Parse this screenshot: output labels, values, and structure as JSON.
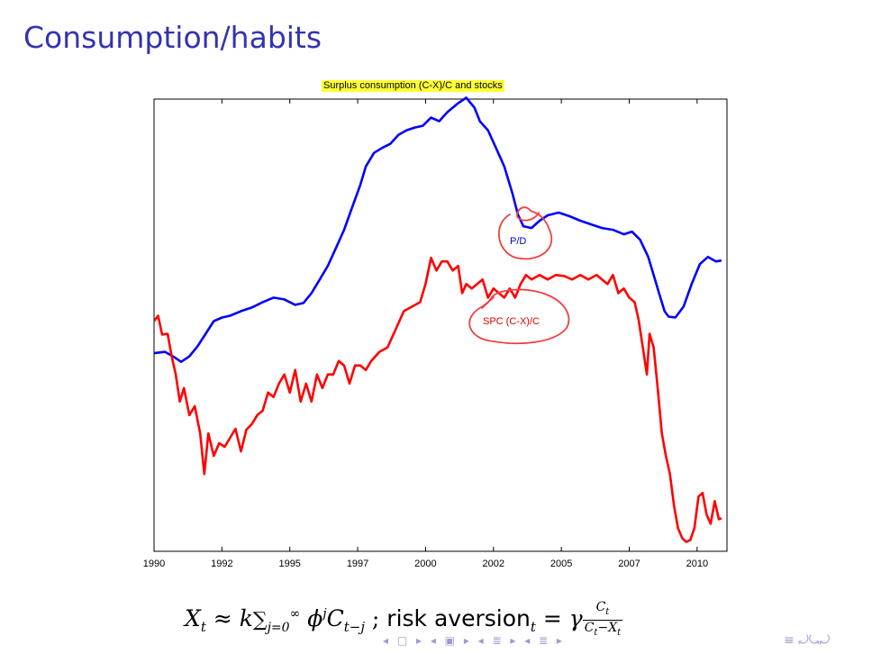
{
  "slide": {
    "title": "Consumption/habits"
  },
  "chart_data": {
    "type": "line",
    "title": "Surplus consumption (C-X)/C and stocks",
    "x_tick_labels": [
      "1990",
      "1992",
      "1995",
      "1997",
      "2000",
      "2002",
      "2005",
      "2007",
      "2010"
    ],
    "x_ticks": [
      1990,
      1992.5,
      1995,
      1997.5,
      2000,
      2002.5,
      2005,
      2007.5,
      2010
    ],
    "xlim": [
      1990,
      2011.1
    ],
    "ylim": [
      0,
      100
    ],
    "grid": false,
    "legend": "none",
    "annotations": [
      "P/D",
      "SPC (C-X)/C"
    ],
    "series": [
      {
        "name": "P/D",
        "color": "#0000ff",
        "points": [
          [
            1990,
            43.8
          ],
          [
            1990.4,
            44.1
          ],
          [
            1990.7,
            43.1
          ],
          [
            1991,
            41.9
          ],
          [
            1991.3,
            43.1
          ],
          [
            1991.6,
            45.3
          ],
          [
            1991.9,
            48.1
          ],
          [
            1992.2,
            50.9
          ],
          [
            1992.5,
            51.7
          ],
          [
            1992.8,
            52.1
          ],
          [
            1993.2,
            53.1
          ],
          [
            1993.6,
            53.9
          ],
          [
            1994,
            55.1
          ],
          [
            1994.4,
            56.1
          ],
          [
            1994.8,
            55.7
          ],
          [
            1995.2,
            54.5
          ],
          [
            1995.5,
            54.9
          ],
          [
            1995.8,
            57.1
          ],
          [
            1996.1,
            60.1
          ],
          [
            1996.4,
            63.1
          ],
          [
            1996.7,
            67.1
          ],
          [
            1997,
            71.1
          ],
          [
            1997.3,
            76.1
          ],
          [
            1997.6,
            81.1
          ],
          [
            1997.8,
            85.1
          ],
          [
            1998.1,
            88.1
          ],
          [
            1998.4,
            89.2
          ],
          [
            1998.7,
            90.1
          ],
          [
            1999,
            92.1
          ],
          [
            1999.3,
            93.1
          ],
          [
            1999.6,
            93.7
          ],
          [
            1999.9,
            94.1
          ],
          [
            2000.2,
            95.9
          ],
          [
            2000.5,
            95.1
          ],
          [
            2000.8,
            97.1
          ],
          [
            2001.2,
            99.1
          ],
          [
            2001.5,
            100.3
          ],
          [
            2001.8,
            98.1
          ],
          [
            2002,
            95.1
          ],
          [
            2002.3,
            93.1
          ],
          [
            2002.6,
            89.1
          ],
          [
            2002.9,
            85.1
          ],
          [
            2003.2,
            79.1
          ],
          [
            2003.4,
            74.5
          ],
          [
            2003.6,
            71.9
          ],
          [
            2003.9,
            71.5
          ],
          [
            2004.2,
            73.1
          ],
          [
            2004.5,
            74.3
          ],
          [
            2004.9,
            74.9
          ],
          [
            2005.3,
            74.1
          ],
          [
            2005.7,
            73.1
          ],
          [
            2006.1,
            72.3
          ],
          [
            2006.5,
            71.5
          ],
          [
            2006.9,
            71.1
          ],
          [
            2007.3,
            70.1
          ],
          [
            2007.6,
            70.7
          ],
          [
            2007.9,
            68.9
          ],
          [
            2008.2,
            65.1
          ],
          [
            2008.4,
            61.1
          ],
          [
            2008.6,
            57.1
          ],
          [
            2008.8,
            53.1
          ],
          [
            2008.95,
            51.9
          ],
          [
            2009.2,
            51.7
          ],
          [
            2009.5,
            54.1
          ],
          [
            2009.8,
            59.1
          ],
          [
            2010.1,
            63.5
          ],
          [
            2010.4,
            65.1
          ],
          [
            2010.7,
            64.1
          ],
          [
            2010.9,
            64.3
          ]
        ]
      },
      {
        "name": "SPC (C-X)/C",
        "color": "#ff0000",
        "points": [
          [
            1990,
            50.9
          ],
          [
            1990.15,
            52.1
          ],
          [
            1990.3,
            47.9
          ],
          [
            1990.5,
            48.1
          ],
          [
            1990.65,
            43.1
          ],
          [
            1990.8,
            39.1
          ],
          [
            1990.95,
            33.1
          ],
          [
            1991.1,
            36.1
          ],
          [
            1991.3,
            30.1
          ],
          [
            1991.5,
            32.1
          ],
          [
            1991.7,
            26.1
          ],
          [
            1991.85,
            17.1
          ],
          [
            1992,
            26.1
          ],
          [
            1992.2,
            21.1
          ],
          [
            1992.4,
            23.9
          ],
          [
            1992.6,
            23.1
          ],
          [
            1992.8,
            25.1
          ],
          [
            1993,
            27.1
          ],
          [
            1993.2,
            22.1
          ],
          [
            1993.4,
            26.9
          ],
          [
            1993.6,
            28.1
          ],
          [
            1993.8,
            30.1
          ],
          [
            1994,
            31.1
          ],
          [
            1994.2,
            35.1
          ],
          [
            1994.4,
            34.1
          ],
          [
            1994.6,
            37.1
          ],
          [
            1994.8,
            39.1
          ],
          [
            1995,
            35.1
          ],
          [
            1995.2,
            40.1
          ],
          [
            1995.4,
            33.1
          ],
          [
            1995.6,
            37.1
          ],
          [
            1995.8,
            33.1
          ],
          [
            1996,
            39.1
          ],
          [
            1996.2,
            36.1
          ],
          [
            1996.4,
            39.1
          ],
          [
            1996.6,
            39.1
          ],
          [
            1996.8,
            42.1
          ],
          [
            1997,
            41.1
          ],
          [
            1997.2,
            37.1
          ],
          [
            1997.4,
            41.1
          ],
          [
            1997.6,
            41.1
          ],
          [
            1997.8,
            40.1
          ],
          [
            1998,
            42.1
          ],
          [
            1998.3,
            44.1
          ],
          [
            1998.6,
            45.1
          ],
          [
            1998.9,
            49.1
          ],
          [
            1999.2,
            53.1
          ],
          [
            1999.5,
            54.1
          ],
          [
            1999.8,
            55.1
          ],
          [
            2000,
            59.1
          ],
          [
            2000.2,
            64.9
          ],
          [
            2000.4,
            62.1
          ],
          [
            2000.6,
            64.1
          ],
          [
            2000.8,
            64.1
          ],
          [
            2001,
            62.1
          ],
          [
            2001.2,
            63.1
          ],
          [
            2001.35,
            57.1
          ],
          [
            2001.5,
            59.1
          ],
          [
            2001.7,
            58.1
          ],
          [
            2001.9,
            59.1
          ],
          [
            2002.1,
            60.1
          ],
          [
            2002.3,
            56.1
          ],
          [
            2002.5,
            58.1
          ],
          [
            2002.7,
            57.1
          ],
          [
            2002.9,
            56.1
          ],
          [
            2003.1,
            58.1
          ],
          [
            2003.3,
            56.1
          ],
          [
            2003.5,
            59.1
          ],
          [
            2003.7,
            61.1
          ],
          [
            2003.9,
            60.1
          ],
          [
            2004.2,
            61.1
          ],
          [
            2004.5,
            60.1
          ],
          [
            2004.8,
            61.1
          ],
          [
            2005.1,
            60.9
          ],
          [
            2005.4,
            60.1
          ],
          [
            2005.7,
            61.1
          ],
          [
            2006,
            60.1
          ],
          [
            2006.3,
            61.1
          ],
          [
            2006.5,
            60.1
          ],
          [
            2006.7,
            59.1
          ],
          [
            2006.9,
            61.1
          ],
          [
            2007.1,
            57.1
          ],
          [
            2007.3,
            58.1
          ],
          [
            2007.5,
            56.1
          ],
          [
            2007.7,
            55.1
          ],
          [
            2007.85,
            51.1
          ],
          [
            2008,
            45.1
          ],
          [
            2008.15,
            39.1
          ],
          [
            2008.25,
            48.1
          ],
          [
            2008.4,
            45.1
          ],
          [
            2008.55,
            36.1
          ],
          [
            2008.7,
            26.1
          ],
          [
            2008.85,
            21.1
          ],
          [
            2009,
            17.1
          ],
          [
            2009.15,
            10.1
          ],
          [
            2009.3,
            5.1
          ],
          [
            2009.45,
            2.9
          ],
          [
            2009.6,
            2.1
          ],
          [
            2009.75,
            2.5
          ],
          [
            2009.9,
            5.1
          ],
          [
            2010.05,
            12.1
          ],
          [
            2010.2,
            12.9
          ],
          [
            2010.35,
            8.1
          ],
          [
            2010.5,
            6.1
          ],
          [
            2010.65,
            11.1
          ],
          [
            2010.8,
            7.1
          ],
          [
            2010.9,
            7.3
          ]
        ]
      }
    ]
  },
  "formula": {
    "lhs_var": "X",
    "lhs_sub": "t",
    "approx": "≈",
    "coef": "k",
    "sum": "∑",
    "sum_sub": "j=0",
    "sum_sup": "∞",
    "phi": "ϕ",
    "phi_sup": "j",
    "c_var": "C",
    "c_sub": "t−j",
    "sep": " ; ",
    "rhs_text": "risk aversion",
    "rhs_sub": "t",
    "eq": "=",
    "gamma": "γ",
    "frac_num": "C",
    "frac_num_sub": "t",
    "frac_den": "C",
    "frac_den_sub1": "t",
    "frac_minus": "−",
    "frac_den_var2": "X",
    "frac_den_sub2": "t"
  },
  "nav": {
    "left_glyphs": "◂ □ ▸ ◂ ▣ ▸ ◂ ≣ ▸ ◂ ≣ ▸",
    "right_glyphs": "≡  ⤾⤿⤾"
  }
}
